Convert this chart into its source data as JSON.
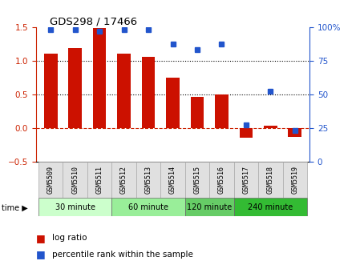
{
  "title": "GDS298 / 17466",
  "samples": [
    "GSM5509",
    "GSM5510",
    "GSM5511",
    "GSM5512",
    "GSM5513",
    "GSM5514",
    "GSM5515",
    "GSM5516",
    "GSM5517",
    "GSM5518",
    "GSM5519"
  ],
  "log_ratio": [
    1.1,
    1.18,
    1.48,
    1.1,
    1.05,
    0.75,
    0.46,
    0.5,
    -0.15,
    0.03,
    -0.13
  ],
  "percentile": [
    98,
    98,
    97,
    98,
    98,
    87,
    83,
    87,
    27,
    52,
    23
  ],
  "groups": [
    {
      "label": "30 minute",
      "start": 0,
      "end": 3
    },
    {
      "label": "60 minute",
      "start": 3,
      "end": 6
    },
    {
      "label": "120 minute",
      "start": 6,
      "end": 8
    },
    {
      "label": "240 minute",
      "start": 8,
      "end": 11
    }
  ],
  "group_colors": [
    "#ccffcc",
    "#99ee99",
    "#66cc66",
    "#33bb33"
  ],
  "bar_color": "#cc1100",
  "dot_color": "#2255cc",
  "ylim_left": [
    -0.5,
    1.5
  ],
  "ylim_right": [
    0,
    100
  ],
  "yticks_left": [
    -0.5,
    0.0,
    0.5,
    1.0,
    1.5
  ],
  "yticks_right": [
    0,
    25,
    50,
    75,
    100
  ],
  "dotted_lines": [
    0.5,
    1.0
  ],
  "dashed_zero_color": "#cc2200",
  "left_axis_color": "#cc2200",
  "right_axis_color": "#2255cc",
  "legend_log_ratio": "log ratio",
  "legend_percentile": "percentile rank within the sample"
}
